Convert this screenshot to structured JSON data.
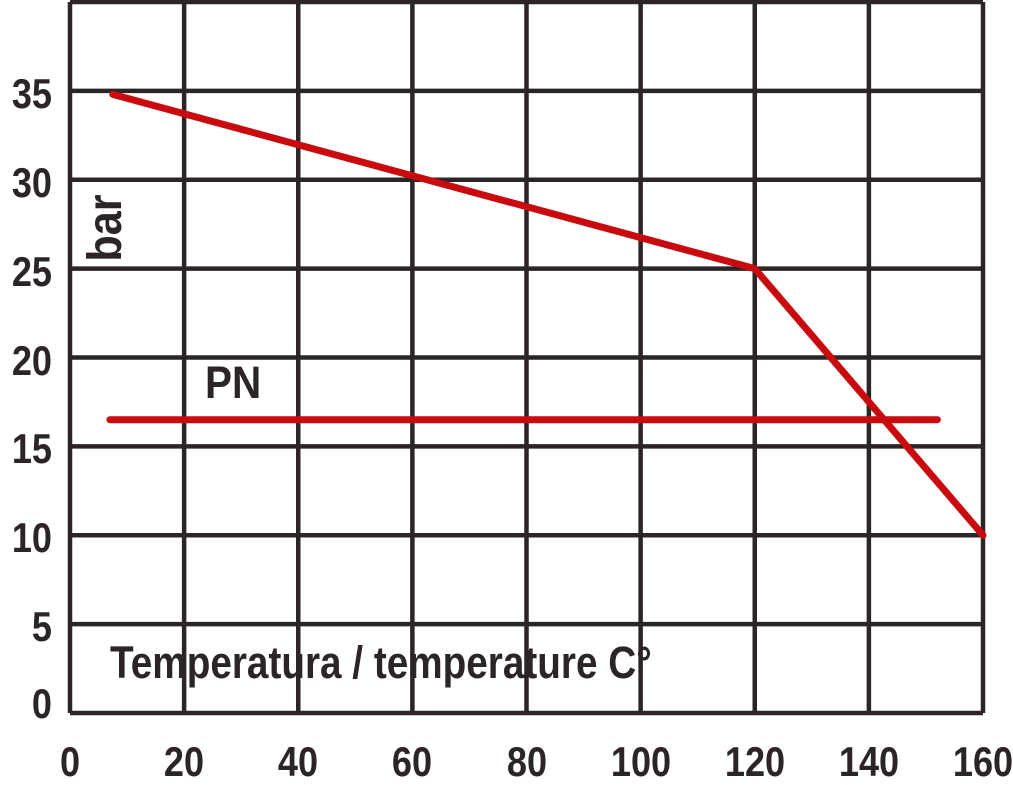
{
  "colors": {
    "ink": "#2b2526",
    "red": "#c90a0e",
    "background": "#ffffff"
  },
  "chart_data": {
    "type": "line",
    "title": "",
    "xlabel": "Temperatura / temperature C°",
    "ylabel": "bar",
    "pn_label": "PN",
    "xlim": [
      0,
      160
    ],
    "ylim": [
      0,
      40
    ],
    "x_grid_step": 20,
    "y_grid_step": 5,
    "grid": "on",
    "legend": "none",
    "x_ticks": [
      "0",
      "20",
      "40",
      "60",
      "80",
      "100",
      "120",
      "140",
      "160"
    ],
    "y_ticks": [
      "0",
      "5",
      "10",
      "15",
      "20",
      "25",
      "30",
      "35"
    ],
    "series": [
      {
        "name": "max-pressure-vs-temperature",
        "color": "#c90a0e",
        "points": [
          [
            7.5,
            34.8
          ],
          [
            120,
            25
          ],
          [
            160,
            10
          ]
        ]
      },
      {
        "name": "pn-rating-line",
        "label": "PN",
        "color": "#c90a0e",
        "points": [
          [
            7,
            16.5
          ],
          [
            152,
            16.5
          ]
        ]
      }
    ]
  }
}
